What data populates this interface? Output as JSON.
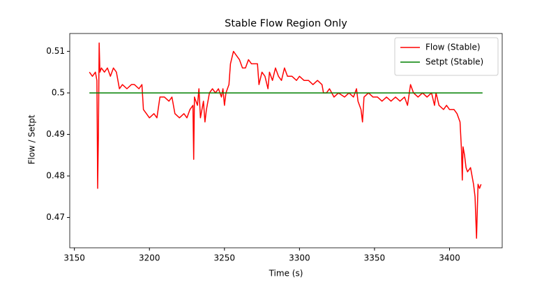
{
  "chart_data": {
    "type": "line",
    "title": "Stable Flow Region Only",
    "x_label": "Time (s)",
    "y_label": "Flow / Setpt",
    "xlim": [
      3146.9,
      3435.1
    ],
    "ylim": [
      0.4627,
      0.5143
    ],
    "xticks": [
      3150,
      3200,
      3250,
      3300,
      3350,
      3400
    ],
    "yticks": [
      0.47,
      0.48,
      0.49,
      0.5,
      0.51
    ],
    "legend": "upper right",
    "series": [
      {
        "name": "Flow (Stable)",
        "color": "#ff0000",
        "x": [
          3160,
          3162,
          3164,
          3165,
          3165.5,
          3166,
          3166.5,
          3167,
          3168,
          3170,
          3172,
          3174,
          3176,
          3178,
          3180,
          3182,
          3185,
          3188,
          3190,
          3193,
          3195,
          3196,
          3198,
          3200,
          3203,
          3205,
          3207,
          3210,
          3213,
          3215,
          3217,
          3220,
          3223,
          3225,
          3227,
          3229,
          3229.5,
          3230,
          3232,
          3233,
          3234,
          3236,
          3237,
          3238,
          3240,
          3242,
          3244,
          3246,
          3248,
          3249,
          3250,
          3251,
          3253,
          3254,
          3256,
          3258,
          3260,
          3262,
          3264,
          3266,
          3268,
          3270,
          3272,
          3273,
          3275,
          3277,
          3279,
          3280,
          3282,
          3284,
          3286,
          3288,
          3290,
          3292,
          3295,
          3298,
          3300,
          3303,
          3306,
          3309,
          3312,
          3315,
          3316,
          3318,
          3320,
          3323,
          3326,
          3330,
          3333,
          3336,
          3338,
          3339,
          3341,
          3342,
          3343,
          3346,
          3349,
          3352,
          3355,
          3358,
          3361,
          3364,
          3367,
          3370,
          3372,
          3374,
          3376,
          3379,
          3382,
          3385,
          3388,
          3390,
          3391,
          3393,
          3396,
          3398,
          3400,
          3403,
          3405,
          3407,
          3408,
          3408.5,
          3409,
          3410,
          3411,
          3412,
          3414,
          3415,
          3416,
          3417,
          3418,
          3419,
          3420,
          3421
        ],
        "values": [
          0.505,
          0.504,
          0.505,
          0.503,
          0.477,
          0.49,
          0.512,
          0.505,
          0.506,
          0.505,
          0.506,
          0.504,
          0.506,
          0.505,
          0.501,
          0.502,
          0.501,
          0.502,
          0.502,
          0.501,
          0.502,
          0.496,
          0.495,
          0.494,
          0.495,
          0.494,
          0.499,
          0.499,
          0.498,
          0.499,
          0.495,
          0.494,
          0.495,
          0.494,
          0.496,
          0.497,
          0.484,
          0.499,
          0.497,
          0.501,
          0.494,
          0.498,
          0.493,
          0.496,
          0.5,
          0.501,
          0.5,
          0.501,
          0.499,
          0.501,
          0.497,
          0.5,
          0.502,
          0.507,
          0.51,
          0.509,
          0.508,
          0.506,
          0.506,
          0.508,
          0.507,
          0.507,
          0.507,
          0.502,
          0.505,
          0.504,
          0.501,
          0.505,
          0.503,
          0.506,
          0.504,
          0.503,
          0.506,
          0.504,
          0.504,
          0.503,
          0.504,
          0.503,
          0.503,
          0.502,
          0.503,
          0.502,
          0.5,
          0.5,
          0.501,
          0.499,
          0.5,
          0.499,
          0.5,
          0.499,
          0.501,
          0.498,
          0.496,
          0.493,
          0.499,
          0.5,
          0.499,
          0.499,
          0.498,
          0.499,
          0.498,
          0.499,
          0.498,
          0.499,
          0.497,
          0.502,
          0.5,
          0.499,
          0.5,
          0.499,
          0.5,
          0.497,
          0.5,
          0.497,
          0.496,
          0.497,
          0.496,
          0.496,
          0.495,
          0.493,
          0.486,
          0.479,
          0.487,
          0.485,
          0.482,
          0.481,
          0.482,
          0.48,
          0.478,
          0.475,
          0.465,
          0.478,
          0.477,
          0.478
        ]
      },
      {
        "name": "Setpt (Stable)",
        "color": "#008000",
        "x": [
          3160,
          3422
        ],
        "values": [
          0.5,
          0.5
        ]
      }
    ]
  }
}
